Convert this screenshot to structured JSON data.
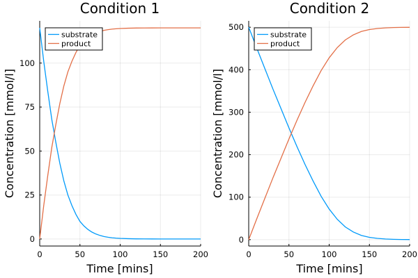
{
  "chart_data": [
    {
      "type": "line",
      "title": "Condition 1",
      "xlabel": "Time [mins]",
      "ylabel": "Concentration [mmol/l]",
      "xlim": [
        0,
        200
      ],
      "ylim": [
        -4,
        124
      ],
      "xticks": [
        0,
        50,
        100,
        150,
        200
      ],
      "yticks": [
        0,
        25,
        50,
        75,
        100
      ],
      "grid": true,
      "legend": "top-left",
      "series": [
        {
          "name": "substrate",
          "color": "#009AFA",
          "x": [
            0,
            5,
            10,
            15,
            20,
            25,
            30,
            35,
            40,
            45,
            50,
            55,
            60,
            65,
            70,
            75,
            80,
            85,
            90,
            95,
            100,
            110,
            120,
            130,
            140,
            150,
            160,
            170,
            180,
            190,
            200
          ],
          "y": [
            120,
            101,
            84,
            68,
            55,
            43,
            33,
            25,
            19,
            14,
            10,
            7.4,
            5.4,
            3.9,
            2.8,
            2.0,
            1.4,
            1.0,
            0.7,
            0.5,
            0.35,
            0.17,
            0.08,
            0.04,
            0.02,
            0.01,
            0,
            0,
            0,
            0,
            0
          ]
        },
        {
          "name": "product",
          "color": "#E36F47",
          "x": [
            0,
            5,
            10,
            15,
            20,
            25,
            30,
            35,
            40,
            45,
            50,
            55,
            60,
            65,
            70,
            75,
            80,
            85,
            90,
            95,
            100,
            110,
            120,
            130,
            140,
            150,
            160,
            170,
            180,
            190,
            200
          ],
          "y": [
            0,
            19,
            36,
            52,
            65,
            77,
            87,
            95,
            101,
            106,
            110,
            112.6,
            114.6,
            116.1,
            117.2,
            118.0,
            118.6,
            119.0,
            119.3,
            119.5,
            119.65,
            119.83,
            119.92,
            119.96,
            119.98,
            119.99,
            120,
            120,
            120,
            120,
            120
          ]
        }
      ]
    },
    {
      "type": "line",
      "title": "Condition 2",
      "xlabel": "Time [mins]",
      "ylabel": "Concentration [mmol/l]",
      "xlim": [
        0,
        200
      ],
      "ylim": [
        -15,
        515
      ],
      "xticks": [
        0,
        50,
        100,
        150,
        200
      ],
      "yticks": [
        0,
        100,
        200,
        300,
        400,
        500
      ],
      "grid": true,
      "legend": "top-left",
      "series": [
        {
          "name": "substrate",
          "color": "#009AFA",
          "x": [
            0,
            10,
            20,
            30,
            40,
            50,
            60,
            70,
            80,
            90,
            100,
            110,
            120,
            130,
            140,
            150,
            160,
            170,
            180,
            190,
            200
          ],
          "y": [
            500,
            451,
            403,
            355,
            309,
            263,
            219,
            177,
            138,
            102,
            72,
            48,
            30,
            18,
            10,
            5.5,
            3,
            1.5,
            0.8,
            0.4,
            0.2
          ]
        },
        {
          "name": "product",
          "color": "#E36F47",
          "x": [
            0,
            10,
            20,
            30,
            40,
            50,
            60,
            70,
            80,
            90,
            100,
            110,
            120,
            130,
            140,
            150,
            160,
            170,
            180,
            190,
            200
          ],
          "y": [
            0,
            49,
            97,
            145,
            191,
            237,
            281,
            323,
            362,
            398,
            428,
            452,
            470,
            482,
            490,
            494.5,
            497,
            498.5,
            499.2,
            499.6,
            499.8
          ]
        }
      ]
    }
  ]
}
